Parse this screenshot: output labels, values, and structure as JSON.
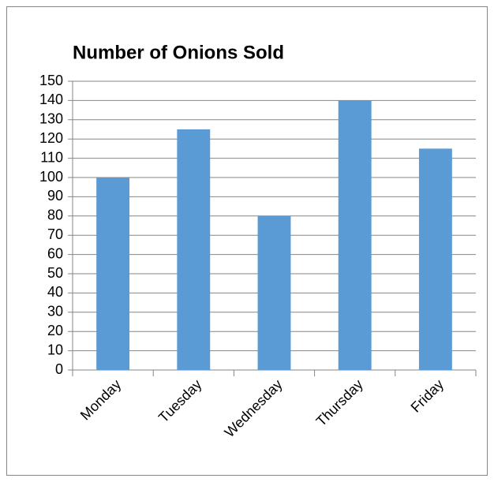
{
  "chart_data": {
    "type": "bar",
    "title": "Number of Onions Sold",
    "categories": [
      "Monday",
      "Tuesday",
      "Wednesday",
      "Thursday",
      "Friday"
    ],
    "values": [
      100,
      125,
      80,
      140,
      115
    ],
    "color": "#5b9bd5",
    "ylim": [
      0,
      150
    ],
    "yticks": [
      0,
      10,
      20,
      30,
      40,
      50,
      60,
      70,
      80,
      90,
      100,
      110,
      120,
      130,
      140,
      150
    ],
    "grid": true
  }
}
